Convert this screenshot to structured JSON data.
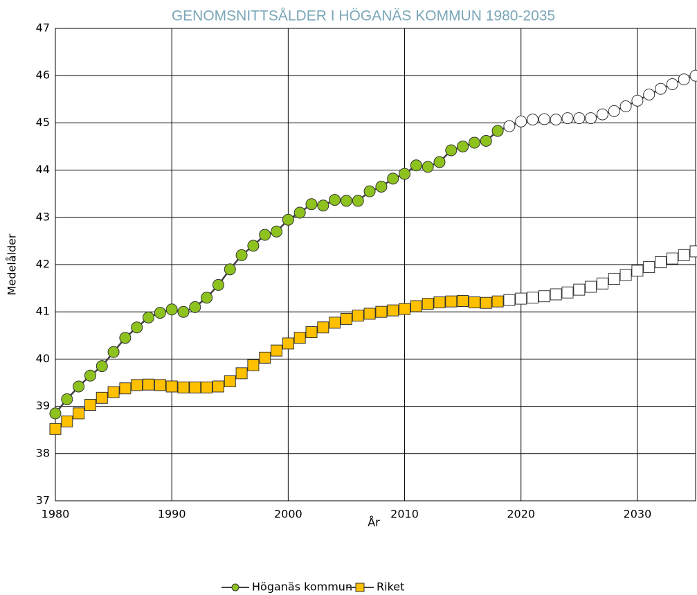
{
  "chart_data": {
    "type": "line",
    "title": "GENOMSNITTSÅLDER I HÖGANÄS KOMMUN 1980-2035",
    "x_label": "År",
    "y_label": "Medelålder",
    "x": [
      1980,
      1981,
      1982,
      1983,
      1984,
      1985,
      1986,
      1987,
      1988,
      1989,
      1990,
      1991,
      1992,
      1993,
      1994,
      1995,
      1996,
      1997,
      1998,
      1999,
      2000,
      2001,
      2002,
      2003,
      2004,
      2005,
      2006,
      2007,
      2008,
      2009,
      2010,
      2011,
      2012,
      2013,
      2014,
      2015,
      2016,
      2017,
      2018,
      2019,
      2020,
      2021,
      2022,
      2023,
      2024,
      2025,
      2026,
      2027,
      2028,
      2029,
      2030,
      2031,
      2032,
      2033,
      2034,
      2035
    ],
    "xlim": [
      1980,
      2035
    ],
    "xticks": [
      1980,
      1990,
      2000,
      2010,
      2020,
      2030
    ],
    "ylim": [
      37,
      47
    ],
    "yticks": [
      37,
      38,
      39,
      40,
      41,
      42,
      43,
      44,
      45,
      46,
      47
    ],
    "grid": true,
    "legend": "bottom",
    "forecast_from": 2019,
    "forecast_color": "#ffffff",
    "line_color": "#404040",
    "series": [
      {
        "name": "Höganäs kommun",
        "color": "#8dc21f",
        "marker": "circle",
        "values": [
          38.85,
          39.15,
          39.42,
          39.65,
          39.85,
          40.15,
          40.45,
          40.67,
          40.88,
          40.98,
          41.05,
          41.0,
          41.1,
          41.3,
          41.57,
          41.9,
          42.2,
          42.4,
          42.63,
          42.7,
          42.95,
          43.1,
          43.28,
          43.25,
          43.37,
          43.35,
          43.35,
          43.55,
          43.65,
          43.82,
          43.92,
          44.1,
          44.07,
          44.17,
          44.42,
          44.5,
          44.58,
          44.62,
          44.83,
          44.93,
          45.03,
          45.07,
          45.08,
          45.07,
          45.1,
          45.1,
          45.1,
          45.18,
          45.25,
          45.35,
          45.47,
          45.6,
          45.72,
          45.82,
          45.92,
          46.0
        ]
      },
      {
        "name": "Riket",
        "color": "#ffc000",
        "marker": "square",
        "values": [
          38.52,
          38.68,
          38.85,
          39.03,
          39.18,
          39.3,
          39.38,
          39.45,
          39.46,
          39.45,
          39.42,
          39.4,
          39.4,
          39.4,
          39.42,
          39.53,
          39.7,
          39.87,
          40.03,
          40.18,
          40.33,
          40.45,
          40.57,
          40.67,
          40.77,
          40.85,
          40.92,
          40.96,
          41.0,
          41.03,
          41.06,
          41.12,
          41.17,
          41.2,
          41.22,
          41.23,
          41.2,
          41.19,
          41.22,
          41.25,
          41.28,
          41.3,
          41.33,
          41.37,
          41.41,
          41.47,
          41.53,
          41.6,
          41.7,
          41.78,
          41.87,
          41.95,
          42.05,
          42.13,
          42.2,
          42.28
        ]
      }
    ]
  }
}
